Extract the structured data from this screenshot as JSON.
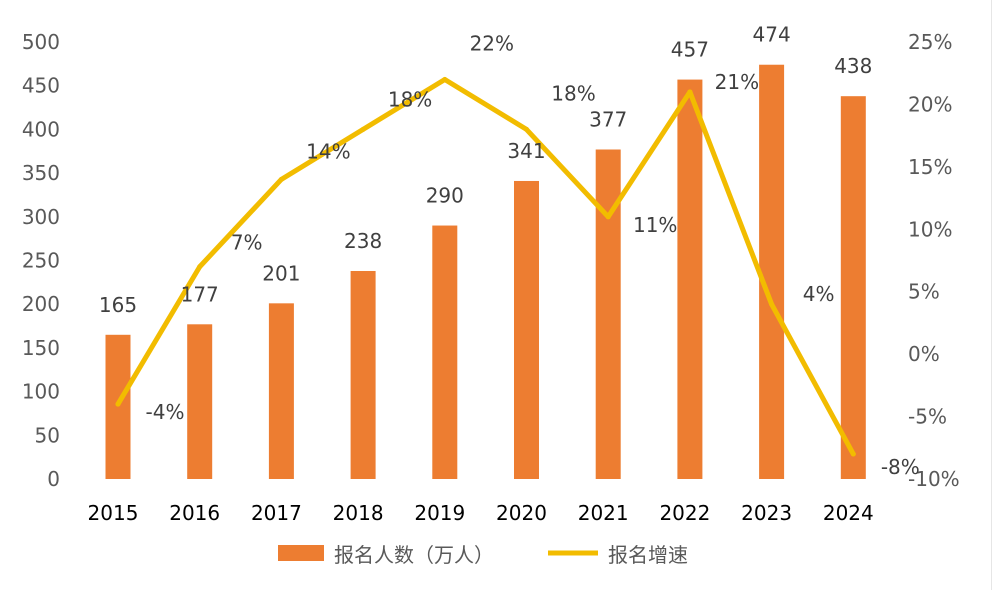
{
  "chart_data": {
    "type": "bar",
    "categories": [
      "2015",
      "2016",
      "2017",
      "2018",
      "2019",
      "2020",
      "2021",
      "2022",
      "2023",
      "2024"
    ],
    "series": [
      {
        "name": "报名人数（万人）",
        "type": "bar",
        "axis": "left",
        "color": "#ED7D31",
        "values": [
          165,
          177,
          201,
          238,
          290,
          341,
          377,
          457,
          474,
          438
        ],
        "labels": [
          "165",
          "177",
          "201",
          "238",
          "290",
          "341",
          "377",
          "457",
          "474",
          "438"
        ]
      },
      {
        "name": "报名增速",
        "type": "line",
        "axis": "right",
        "color": "#F2BC00",
        "values": [
          -4,
          7,
          14,
          18,
          22,
          18,
          11,
          21,
          4,
          -8
        ],
        "labels": [
          "-4%",
          "7%",
          "14%",
          "18%",
          "22%",
          "18%",
          "11%",
          "21%",
          "4%",
          "-8%"
        ]
      }
    ],
    "y_left": {
      "lim": [
        0,
        500
      ],
      "ticks": [
        0,
        50,
        100,
        150,
        200,
        250,
        300,
        350,
        400,
        450,
        500
      ],
      "tick_labels": [
        "0",
        "50",
        "100",
        "150",
        "200",
        "250",
        "300",
        "350",
        "400",
        "450",
        "500"
      ]
    },
    "y_right": {
      "lim": [
        -10,
        25
      ],
      "ticks": [
        -10,
        -5,
        0,
        5,
        10,
        15,
        20,
        25
      ],
      "tick_labels": [
        "-10%",
        "-5%",
        "0%",
        "5%",
        "10%",
        "15%",
        "20%",
        "25%"
      ]
    },
    "grid": false,
    "legend_position": "bottom",
    "title": "",
    "xlabel": "",
    "ylabel": ""
  }
}
